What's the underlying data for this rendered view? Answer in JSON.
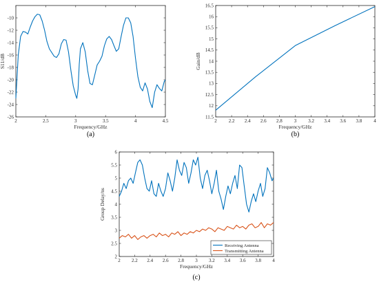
{
  "chart_data": [
    {
      "panel_label": "(a)",
      "type": "line",
      "xlabel": "Frequency/GHz",
      "ylabel": "S11/dB",
      "xlim": [
        2,
        4.5
      ],
      "ylim": [
        -26,
        -8
      ],
      "xticks": [
        2,
        2.5,
        3,
        3.5,
        4,
        4.5
      ],
      "xtick_labels": [
        "2",
        "2.5",
        "3",
        "3.5",
        "4",
        "4.5"
      ],
      "yticks": [
        -26,
        -24,
        -22,
        -20,
        -18,
        -16,
        -14,
        -12,
        -10
      ],
      "ytick_labels": [
        "-26",
        "-24",
        "-22",
        "-20",
        "-18",
        "-16",
        "-14",
        "-12",
        "-10"
      ],
      "grid": false,
      "series": [
        {
          "color": "#0072BD",
          "x": [
            2.0,
            2.04,
            2.08,
            2.12,
            2.16,
            2.2,
            2.24,
            2.28,
            2.32,
            2.36,
            2.4,
            2.44,
            2.48,
            2.52,
            2.56,
            2.6,
            2.64,
            2.68,
            2.72,
            2.76,
            2.8,
            2.84,
            2.88,
            2.92,
            2.96,
            3.0,
            3.02,
            3.04,
            3.06,
            3.08,
            3.12,
            3.16,
            3.2,
            3.24,
            3.28,
            3.32,
            3.36,
            3.4,
            3.44,
            3.48,
            3.52,
            3.56,
            3.6,
            3.64,
            3.68,
            3.72,
            3.76,
            3.8,
            3.84,
            3.88,
            3.92,
            3.96,
            4.0,
            4.04,
            4.08,
            4.12,
            4.16,
            4.2,
            4.24,
            4.28,
            4.32,
            4.36,
            4.4,
            4.44,
            4.48,
            4.5
          ],
          "y": [
            -23.0,
            -16.0,
            -13.0,
            -12.2,
            -12.3,
            -12.6,
            -11.5,
            -10.5,
            -9.8,
            -9.4,
            -9.5,
            -10.5,
            -12.0,
            -13.8,
            -15.0,
            -15.6,
            -16.2,
            -16.4,
            -15.8,
            -14.2,
            -13.5,
            -13.6,
            -15.5,
            -18.5,
            -21.0,
            -22.5,
            -23.0,
            -21.5,
            -17.5,
            -15.0,
            -14.0,
            -15.5,
            -18.5,
            -20.6,
            -20.8,
            -19.2,
            -17.6,
            -17.0,
            -16.2,
            -14.5,
            -13.4,
            -13.0,
            -13.5,
            -14.5,
            -15.4,
            -15.0,
            -13.0,
            -11.2,
            -10.0,
            -10.0,
            -10.8,
            -13.0,
            -16.5,
            -19.5,
            -21.2,
            -21.8,
            -20.5,
            -21.5,
            -23.5,
            -24.5,
            -22.0,
            -20.8,
            -21.4,
            -21.8,
            -20.3,
            -20.0
          ]
        }
      ]
    },
    {
      "panel_label": "(b)",
      "type": "line",
      "xlabel": "Frequency/GHz",
      "ylabel": "Gain/dB",
      "xlim": [
        2,
        4
      ],
      "ylim": [
        11.5,
        16.5
      ],
      "xticks": [
        2,
        2.2,
        2.4,
        2.6,
        2.8,
        3,
        3.2,
        3.4,
        3.6,
        3.8,
        4
      ],
      "xtick_labels": [
        "2",
        "2.2",
        "2.4",
        "2.6",
        "2.8",
        "3",
        "3.2",
        "3.4",
        "3.6",
        "3.8",
        "4"
      ],
      "yticks": [
        11.5,
        12,
        12.5,
        13,
        13.5,
        14,
        14.5,
        15,
        15.5,
        16,
        16.5
      ],
      "ytick_labels": [
        "11.5",
        "12",
        "12.5",
        "13",
        "13.5",
        "14",
        "14.5",
        "15",
        "15.5",
        "16",
        "16.5"
      ],
      "grid": false,
      "series": [
        {
          "color": "#0072BD",
          "x": [
            2,
            2.5,
            3,
            3.5,
            4
          ],
          "y": [
            11.8,
            13.3,
            14.7,
            15.6,
            16.45
          ]
        }
      ]
    },
    {
      "panel_label": "(c)",
      "type": "line",
      "xlabel": "Frequency/GHz",
      "ylabel": "Group Delay/ns",
      "xlim": [
        2,
        4
      ],
      "ylim": [
        2,
        6
      ],
      "xticks": [
        2,
        2.2,
        2.4,
        2.6,
        2.8,
        3,
        3.2,
        3.4,
        3.6,
        3.8,
        4
      ],
      "xtick_labels": [
        "2",
        "2.2",
        "2.4",
        "2.6",
        "2.8",
        "3",
        "3.2",
        "3.4",
        "3.6",
        "3.8",
        "4"
      ],
      "yticks": [
        2,
        2.5,
        3,
        3.5,
        4,
        4.5,
        5,
        5.5,
        6
      ],
      "ytick_labels": [
        "2",
        "2.5",
        "3",
        "3.5",
        "4",
        "4.5",
        "5",
        "5.5",
        "6"
      ],
      "grid": false,
      "legend_position": "bottom-right",
      "series": [
        {
          "name": "Receiving Antenna",
          "color": "#0072BD",
          "x": [
            2.0,
            2.03,
            2.06,
            2.09,
            2.12,
            2.15,
            2.18,
            2.21,
            2.24,
            2.27,
            2.3,
            2.33,
            2.36,
            2.39,
            2.42,
            2.45,
            2.48,
            2.51,
            2.54,
            2.57,
            2.6,
            2.63,
            2.66,
            2.69,
            2.72,
            2.75,
            2.78,
            2.81,
            2.84,
            2.87,
            2.9,
            2.93,
            2.96,
            2.99,
            3.02,
            3.05,
            3.08,
            3.11,
            3.14,
            3.17,
            3.2,
            3.23,
            3.26,
            3.29,
            3.32,
            3.35,
            3.38,
            3.41,
            3.44,
            3.47,
            3.5,
            3.53,
            3.56,
            3.59,
            3.62,
            3.65,
            3.68,
            3.71,
            3.74,
            3.77,
            3.8,
            3.83,
            3.86,
            3.89,
            3.92,
            3.95,
            3.98,
            4.0
          ],
          "y": [
            4.3,
            4.5,
            4.8,
            4.6,
            4.9,
            5.0,
            4.8,
            5.2,
            5.6,
            5.7,
            5.5,
            5.0,
            4.6,
            4.5,
            4.9,
            4.4,
            4.3,
            4.8,
            4.5,
            4.3,
            4.6,
            5.2,
            4.9,
            4.5,
            5.0,
            5.7,
            5.3,
            5.1,
            5.6,
            5.4,
            4.8,
            5.2,
            5.7,
            5.5,
            5.8,
            5.0,
            4.6,
            5.1,
            5.3,
            4.9,
            4.4,
            4.8,
            5.3,
            4.5,
            4.2,
            3.8,
            4.3,
            4.7,
            4.4,
            4.8,
            5.1,
            4.6,
            5.5,
            5.4,
            4.7,
            4.0,
            3.7,
            4.1,
            4.4,
            4.1,
            4.5,
            4.8,
            4.3,
            4.6,
            5.4,
            5.2,
            4.9,
            5.0
          ]
        },
        {
          "name": "Transmitting Antenna",
          "color": "#D95319",
          "x": [
            2.0,
            2.04,
            2.08,
            2.12,
            2.16,
            2.2,
            2.24,
            2.28,
            2.32,
            2.36,
            2.4,
            2.44,
            2.48,
            2.52,
            2.56,
            2.6,
            2.64,
            2.68,
            2.72,
            2.76,
            2.8,
            2.84,
            2.88,
            2.92,
            2.96,
            3.0,
            3.04,
            3.08,
            3.12,
            3.16,
            3.2,
            3.24,
            3.28,
            3.32,
            3.36,
            3.4,
            3.44,
            3.48,
            3.52,
            3.56,
            3.6,
            3.64,
            3.68,
            3.72,
            3.76,
            3.8,
            3.84,
            3.88,
            3.92,
            3.96,
            4.0
          ],
          "y": [
            2.7,
            2.8,
            2.75,
            2.85,
            2.7,
            2.8,
            2.65,
            2.75,
            2.8,
            2.7,
            2.8,
            2.85,
            2.75,
            2.9,
            2.8,
            2.85,
            2.75,
            2.9,
            2.85,
            2.95,
            2.8,
            2.9,
            2.85,
            2.95,
            2.9,
            3.0,
            2.95,
            3.05,
            3.0,
            3.1,
            3.05,
            2.95,
            3.1,
            3.05,
            3.0,
            3.15,
            3.1,
            3.05,
            3.2,
            3.1,
            3.15,
            3.05,
            3.2,
            3.25,
            3.1,
            3.15,
            3.3,
            3.1,
            3.25,
            3.2,
            3.3
          ]
        }
      ]
    }
  ]
}
